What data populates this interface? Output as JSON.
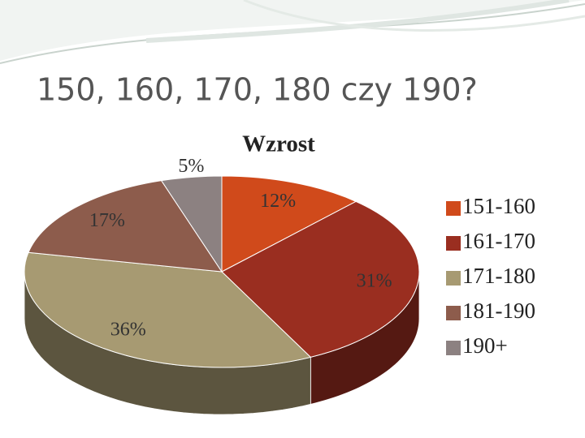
{
  "slide_title": "150, 160, 170, 180 czy 190?",
  "chart_data": {
    "type": "pie",
    "title": "Wzrost",
    "categories": [
      "151-160",
      "161-170",
      "171-180",
      "181-190",
      "190+"
    ],
    "values": [
      12,
      31,
      36,
      17,
      5
    ],
    "value_labels": [
      "12%",
      "31%",
      "36%",
      "17%",
      "5%"
    ],
    "colors": [
      "#d04a1b",
      "#9a2e20",
      "#a79a72",
      "#8d5c4c",
      "#8c8181"
    ],
    "legend": "right"
  }
}
